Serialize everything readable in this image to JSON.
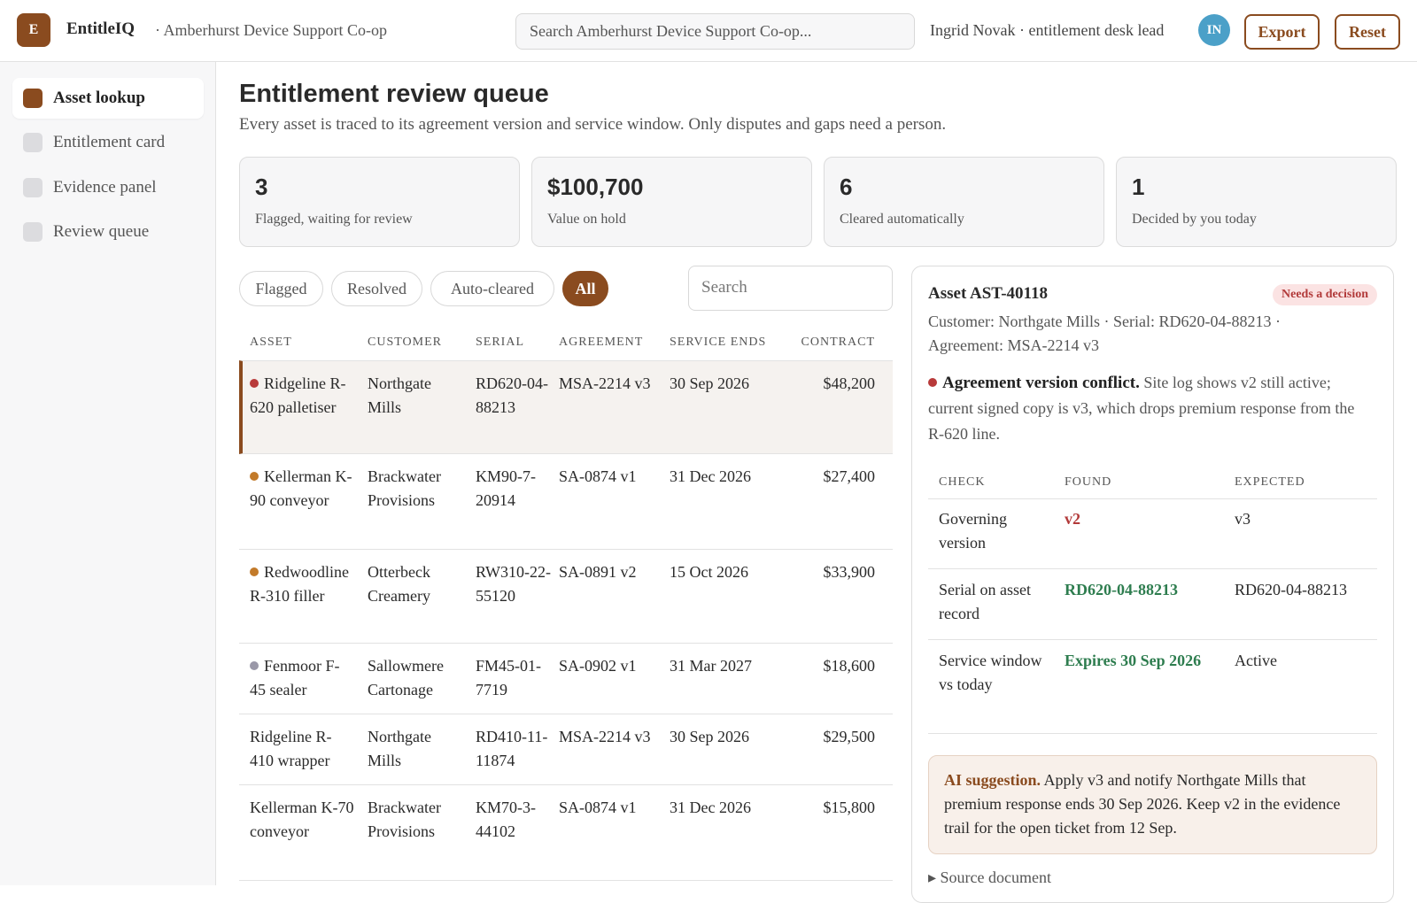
{
  "header": {
    "logo": "E",
    "app": "EntitleIQ",
    "org": "· Amberhurst Device Support Co-op",
    "search": "Search Amberhurst Device Support Co-op...",
    "user": "Ingrid Novak · entitlement desk lead",
    "avatar": "IN",
    "buttons": [
      "Export",
      "Reset"
    ]
  },
  "nav": [
    "Asset lookup",
    "Entitlement card",
    "Evidence panel",
    "Review queue"
  ],
  "main": {
    "title": "Entitlement review queue",
    "subtitle": "Every asset is traced to its agreement version and service window. Only disputes and gaps need a person.",
    "stats": [
      {
        "value": "3",
        "label": "Flagged, waiting for review"
      },
      {
        "value": "$100,700",
        "label": "Value on hold"
      },
      {
        "value": "6",
        "label": "Cleared automatically"
      },
      {
        "value": "1",
        "label": "Decided by you today"
      }
    ],
    "filters": [
      "Flagged",
      "Resolved",
      "Auto-cleared",
      "All"
    ],
    "search": "Search",
    "table": {
      "columns": [
        "ASSET",
        "CUSTOMER",
        "SERIAL",
        "AGREEMENT",
        "SERVICE ENDS",
        "CONTRACT"
      ],
      "rows": [
        [
          "Ridgeline R-620 palletiser",
          "Northgate Mills",
          "RD620-04-88213",
          "MSA-2214 v3",
          "30 Sep 2026",
          "$48,200"
        ],
        [
          "Kellerman K-90 conveyor",
          "Brackwater Provisions",
          "KM90-7-20914",
          "SA-0874 v1",
          "31 Dec 2026",
          "$27,400"
        ],
        [
          "Redwoodline R-310 filler",
          "Otterbeck Creamery",
          "RW310-22-55120",
          "SA-0891 v2",
          "15 Oct 2026",
          "$33,900"
        ],
        [
          "Fenmoor F-45 sealer",
          "Sallowmere Cartonage",
          "FM45-01-7719",
          "SA-0902 v1",
          "31 Mar 2027",
          "$18,600"
        ],
        [
          "Ridgeline R-410 wrapper",
          "Northgate Mills",
          "RD410-11-11874",
          "MSA-2214 v3",
          "30 Sep 2026",
          "$29,500"
        ],
        [
          "Kellerman K-70 conveyor",
          "Brackwater Provisions",
          "KM70-3-44102",
          "SA-0874 v1",
          "31 Dec 2026",
          "$15,800"
        ]
      ],
      "dot_colors": [
        "#b83a3a",
        "#c27a2a",
        "#c27a2a",
        "#9a98a8",
        null,
        null
      ]
    }
  },
  "detail": {
    "title": "Asset AST-40118",
    "badge": "Needs a decision",
    "meta": "Customer: Northgate Mills · Serial: RD620-04-88213 · Agreement: MSA-2214 v3",
    "alert_title": "Agreement version conflict.",
    "alert_text": "Site log shows v2 still active; current signed copy is v3, which drops premium response from the R-620 line.",
    "checks": {
      "columns": [
        "CHECK",
        "FOUND",
        "EXPECTED"
      ],
      "rows": [
        {
          "check": "Governing version",
          "found": "v2",
          "expected": "v3",
          "color": "#b23a3a"
        },
        {
          "check": "Serial on asset record",
          "found": "RD620-04-88213",
          "expected": "RD620-04-88213",
          "color": "#2e7d4f"
        },
        {
          "check": "Service window vs today",
          "found": "Expires 30 Sep 2026",
          "expected": "Active",
          "color": "#2e7d4f"
        }
      ]
    },
    "ai_title": "AI suggestion.",
    "ai_text": "Apply v3 and notify Northgate Mills that premium response ends 30 Sep 2026. Keep v2 in the evidence trail for the open ticket from 12 Sep.",
    "source": "Source document"
  }
}
